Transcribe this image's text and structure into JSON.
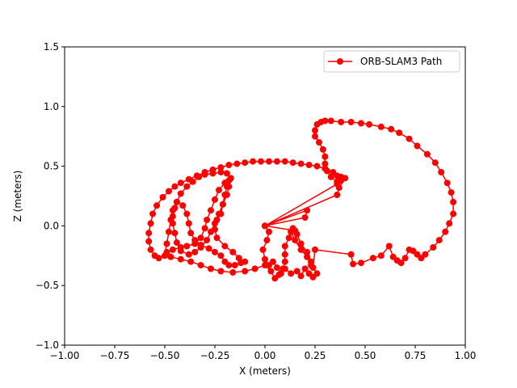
{
  "chart_data": {
    "type": "line",
    "title": "",
    "xlabel": "X (meters)",
    "ylabel": "Z (meters)",
    "xlim": [
      -1.0,
      1.0
    ],
    "ylim": [
      -1.0,
      1.5
    ],
    "xticks": [
      "−1.00",
      "−0.75",
      "−0.50",
      "−0.25",
      "0.00",
      "0.25",
      "0.50",
      "0.75",
      "1.00"
    ],
    "yticks": [
      "−1.0",
      "−0.5",
      "0.0",
      "0.5",
      "1.0",
      "1.5"
    ],
    "xtick_values": [
      -1.0,
      -0.75,
      -0.5,
      -0.25,
      0.0,
      0.25,
      0.5,
      0.75,
      1.0
    ],
    "ytick_values": [
      -1.0,
      -0.5,
      0.0,
      0.5,
      1.0,
      1.5
    ],
    "grid": false,
    "legend": {
      "placement": "top-right"
    },
    "series": [
      {
        "name": "ORB-SLAM3 Path",
        "color": "#ff0000",
        "marker": "circle",
        "points": [
          [
            0.0,
            0.0
          ],
          [
            0.02,
            -0.05
          ],
          [
            0.01,
            -0.12
          ],
          [
            -0.01,
            -0.2
          ],
          [
            0.0,
            -0.28
          ],
          [
            0.02,
            -0.33
          ],
          [
            0.04,
            -0.3
          ],
          [
            0.06,
            -0.35
          ],
          [
            0.08,
            -0.4
          ],
          [
            0.1,
            -0.36
          ],
          [
            0.13,
            -0.4
          ],
          [
            0.16,
            -0.38
          ],
          [
            0.18,
            -0.42
          ],
          [
            0.2,
            -0.36
          ],
          [
            0.22,
            -0.4
          ],
          [
            0.24,
            -0.43
          ],
          [
            0.26,
            -0.4
          ],
          [
            0.23,
            -0.33
          ],
          [
            0.21,
            -0.26
          ],
          [
            0.18,
            -0.2
          ],
          [
            0.15,
            -0.12
          ],
          [
            0.13,
            -0.05
          ],
          [
            0.14,
            -0.02
          ],
          [
            0.16,
            -0.07
          ],
          [
            0.18,
            -0.15
          ],
          [
            0.21,
            -0.22
          ],
          [
            0.23,
            -0.3
          ],
          [
            0.24,
            -0.35
          ],
          [
            0.25,
            -0.2
          ],
          [
            0.43,
            -0.24
          ],
          [
            0.44,
            -0.32
          ],
          [
            0.48,
            -0.31
          ],
          [
            0.54,
            -0.27
          ],
          [
            0.58,
            -0.25
          ],
          [
            0.62,
            -0.17
          ],
          [
            0.64,
            -0.26
          ],
          [
            0.66,
            -0.29
          ],
          [
            0.68,
            -0.31
          ],
          [
            0.7,
            -0.27
          ],
          [
            0.72,
            -0.2
          ],
          [
            0.74,
            -0.21
          ],
          [
            0.76,
            -0.24
          ],
          [
            0.78,
            -0.27
          ],
          [
            0.8,
            -0.24
          ],
          [
            0.84,
            -0.18
          ],
          [
            0.87,
            -0.12
          ],
          [
            0.9,
            -0.05
          ],
          [
            0.92,
            0.02
          ],
          [
            0.94,
            0.1
          ],
          [
            0.94,
            0.2
          ],
          [
            0.93,
            0.28
          ],
          [
            0.91,
            0.36
          ],
          [
            0.88,
            0.45
          ],
          [
            0.85,
            0.53
          ],
          [
            0.81,
            0.6
          ],
          [
            0.76,
            0.67
          ],
          [
            0.72,
            0.73
          ],
          [
            0.67,
            0.78
          ],
          [
            0.63,
            0.81
          ],
          [
            0.58,
            0.83
          ],
          [
            0.52,
            0.85
          ],
          [
            0.48,
            0.86
          ],
          [
            0.43,
            0.87
          ],
          [
            0.38,
            0.87
          ],
          [
            0.33,
            0.88
          ],
          [
            0.3,
            0.88
          ],
          [
            0.28,
            0.87
          ],
          [
            0.26,
            0.85
          ],
          [
            0.25,
            0.8
          ],
          [
            0.25,
            0.75
          ],
          [
            0.27,
            0.7
          ],
          [
            0.29,
            0.64
          ],
          [
            0.3,
            0.58
          ],
          [
            0.3,
            0.52
          ],
          [
            0.31,
            0.46
          ],
          [
            0.33,
            0.41
          ],
          [
            0.36,
            0.37
          ],
          [
            0.38,
            0.38
          ],
          [
            0.36,
            0.42
          ],
          [
            0.34,
            0.45
          ],
          [
            0.3,
            0.48
          ],
          [
            0.26,
            0.5
          ],
          [
            0.22,
            0.51
          ],
          [
            0.18,
            0.52
          ],
          [
            0.14,
            0.53
          ],
          [
            0.1,
            0.54
          ],
          [
            0.06,
            0.54
          ],
          [
            0.02,
            0.54
          ],
          [
            -0.02,
            0.54
          ],
          [
            -0.06,
            0.54
          ],
          [
            -0.1,
            0.53
          ],
          [
            -0.14,
            0.52
          ],
          [
            -0.18,
            0.51
          ],
          [
            -0.22,
            0.49
          ],
          [
            -0.26,
            0.47
          ],
          [
            -0.3,
            0.45
          ],
          [
            -0.34,
            0.42
          ],
          [
            -0.38,
            0.39
          ],
          [
            -0.42,
            0.36
          ],
          [
            -0.45,
            0.33
          ],
          [
            -0.48,
            0.29
          ],
          [
            -0.51,
            0.24
          ],
          [
            -0.54,
            0.17
          ],
          [
            -0.56,
            0.1
          ],
          [
            -0.57,
            0.02
          ],
          [
            -0.58,
            -0.06
          ],
          [
            -0.58,
            -0.13
          ],
          [
            -0.57,
            -0.2
          ],
          [
            -0.55,
            -0.25
          ],
          [
            -0.53,
            -0.27
          ],
          [
            -0.5,
            -0.25
          ],
          [
            -0.49,
            -0.15
          ],
          [
            -0.48,
            -0.05
          ],
          [
            -0.47,
            0.05
          ],
          [
            -0.46,
            0.13
          ],
          [
            -0.44,
            0.2
          ],
          [
            -0.42,
            0.27
          ],
          [
            -0.39,
            0.33
          ],
          [
            -0.36,
            0.37
          ],
          [
            -0.33,
            0.41
          ],
          [
            -0.3,
            0.43
          ],
          [
            -0.26,
            0.44
          ],
          [
            -0.22,
            0.45
          ],
          [
            -0.19,
            0.44
          ],
          [
            -0.17,
            0.4
          ],
          [
            -0.18,
            0.33
          ],
          [
            -0.19,
            0.26
          ],
          [
            -0.21,
            0.18
          ],
          [
            -0.23,
            0.1
          ],
          [
            -0.25,
            0.02
          ],
          [
            -0.27,
            -0.05
          ],
          [
            -0.29,
            -0.12
          ],
          [
            -0.32,
            -0.18
          ],
          [
            -0.35,
            -0.22
          ],
          [
            -0.38,
            -0.24
          ],
          [
            -0.42,
            -0.21
          ],
          [
            -0.44,
            -0.14
          ],
          [
            -0.45,
            -0.06
          ],
          [
            -0.46,
            0.02
          ],
          [
            -0.46,
            0.08
          ],
          [
            -0.45,
            0.15
          ],
          [
            -0.44,
            0.2
          ],
          [
            -0.41,
            0.17
          ],
          [
            -0.39,
            0.1
          ],
          [
            -0.38,
            0.02
          ],
          [
            -0.37,
            -0.06
          ],
          [
            -0.35,
            -0.12
          ],
          [
            -0.32,
            -0.16
          ],
          [
            -0.28,
            -0.19
          ],
          [
            -0.25,
            -0.22
          ],
          [
            -0.22,
            -0.25
          ],
          [
            -0.2,
            -0.3
          ],
          [
            -0.18,
            -0.33
          ],
          [
            -0.15,
            -0.33
          ],
          [
            -0.12,
            -0.31
          ],
          [
            -0.1,
            -0.3
          ],
          [
            -0.13,
            -0.27
          ],
          [
            -0.16,
            -0.22
          ],
          [
            -0.2,
            -0.17
          ],
          [
            -0.24,
            -0.1
          ],
          [
            -0.25,
            -0.03
          ],
          [
            -0.24,
            0.05
          ],
          [
            -0.22,
            0.1
          ],
          [
            -0.21,
            0.18
          ],
          [
            -0.2,
            0.26
          ],
          [
            -0.19,
            0.33
          ],
          [
            -0.18,
            0.38
          ],
          [
            -0.2,
            0.36
          ],
          [
            -0.23,
            0.3
          ],
          [
            -0.25,
            0.22
          ],
          [
            -0.27,
            0.13
          ],
          [
            -0.29,
            0.05
          ],
          [
            -0.3,
            -0.02
          ],
          [
            -0.32,
            -0.1
          ],
          [
            -0.35,
            -0.15
          ],
          [
            -0.39,
            -0.17
          ],
          [
            -0.42,
            -0.18
          ],
          [
            -0.46,
            -0.2
          ],
          [
            -0.49,
            -0.22
          ],
          [
            -0.47,
            -0.26
          ],
          [
            -0.42,
            -0.28
          ],
          [
            -0.37,
            -0.3
          ],
          [
            -0.32,
            -0.33
          ],
          [
            -0.27,
            -0.36
          ],
          [
            -0.22,
            -0.38
          ],
          [
            -0.16,
            -0.39
          ],
          [
            -0.1,
            -0.38
          ],
          [
            -0.05,
            -0.36
          ],
          [
            0.0,
            -0.33
          ],
          [
            0.03,
            -0.38
          ],
          [
            0.05,
            -0.44
          ],
          [
            0.07,
            -0.41
          ],
          [
            0.09,
            -0.36
          ],
          [
            0.1,
            -0.3
          ],
          [
            0.1,
            -0.24
          ],
          [
            0.1,
            -0.17
          ],
          [
            0.12,
            -0.1
          ],
          [
            0.13,
            -0.05
          ],
          [
            0.15,
            -0.04
          ],
          [
            0.0,
            0.0
          ],
          [
            0.2,
            0.07
          ],
          [
            0.21,
            0.13
          ],
          [
            0.0,
            0.0
          ],
          [
            0.36,
            0.35
          ],
          [
            0.38,
            0.41
          ],
          [
            0.4,
            0.4
          ],
          [
            0.37,
            0.32
          ],
          [
            0.36,
            0.26
          ],
          [
            0.0,
            0.0
          ]
        ]
      }
    ]
  }
}
